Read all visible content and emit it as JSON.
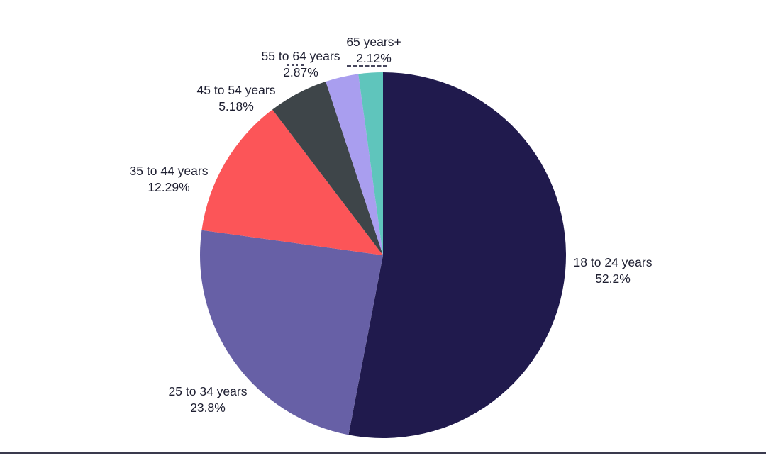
{
  "colors": {
    "background": "#ffffff",
    "label_text": "#1d1e30",
    "bottom_rule": "#3a3a4e"
  },
  "chart_data": {
    "type": "pie",
    "title": "",
    "legend_position": "none",
    "start_angle_deg": 0,
    "direction": "clockwise",
    "labels_style": "outside, name over percent",
    "slices": [
      {
        "label": "18 to 24 years",
        "value": 52.2,
        "pct_text": "52.2%",
        "color": "#201a4d"
      },
      {
        "label": "25 to 34 years",
        "value": 23.8,
        "pct_text": "23.8%",
        "color": "#6760a6"
      },
      {
        "label": "35 to 44 years",
        "value": 12.29,
        "pct_text": "12.29%",
        "color": "#fc5558"
      },
      {
        "label": "45 to 54 years",
        "value": 5.18,
        "pct_text": "5.18%",
        "color": "#3e4549"
      },
      {
        "label": "55 to 64 years",
        "value": 2.87,
        "pct_text": "2.87%",
        "color": "#a99eef"
      },
      {
        "label": "65 years+",
        "value": 2.12,
        "pct_text": "2.12%",
        "color": "#5fc5bc"
      }
    ]
  }
}
